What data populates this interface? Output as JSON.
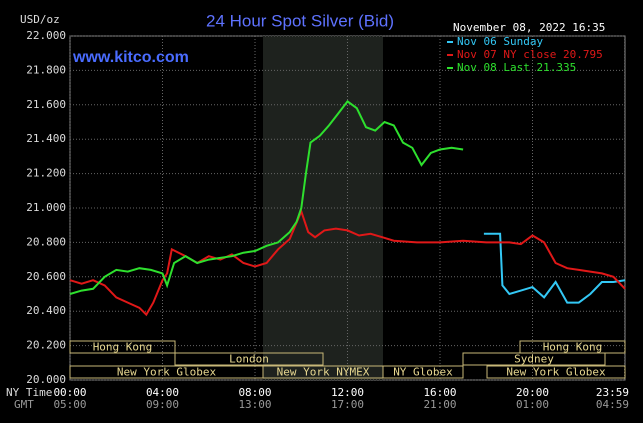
{
  "chart_data": {
    "type": "line",
    "title": "24 Hour Spot Silver (Bid)",
    "timestamp": "November 08, 2022 16:35",
    "watermark": "www.kitco.com",
    "y_unit": "USD/oz",
    "x_row_labels": [
      "NY Time",
      "GMT"
    ],
    "xlim": [
      0,
      24
    ],
    "xticks": [
      {
        "value": 0,
        "label": "00:00"
      },
      {
        "value": 4,
        "label": "04:00"
      },
      {
        "value": 8,
        "label": "08:00"
      },
      {
        "value": 12,
        "label": "12:00"
      },
      {
        "value": 16,
        "label": "16:00"
      },
      {
        "value": 20,
        "label": "20:00"
      },
      {
        "value": 23.983,
        "label": "23:59"
      }
    ],
    "gmt_labels": [
      "05:00",
      "09:00",
      "13:00",
      "17:00",
      "21:00",
      "01:00",
      "04:59"
    ],
    "ylim": [
      20,
      22
    ],
    "yticks": [
      {
        "value": 20,
        "label": "20.000"
      },
      {
        "value": 20.2,
        "label": "20.200"
      },
      {
        "value": 20.4,
        "label": "20.400"
      },
      {
        "value": 20.6,
        "label": "20.600"
      },
      {
        "value": 20.8,
        "label": "20.800"
      },
      {
        "value": 21,
        "label": "21.000"
      },
      {
        "value": 21.2,
        "label": "21.200"
      },
      {
        "value": 21.4,
        "label": "21.400"
      },
      {
        "value": 21.6,
        "label": "21.600"
      },
      {
        "value": 21.8,
        "label": "21.800"
      },
      {
        "value": 22,
        "label": "22.000"
      }
    ],
    "grid": true,
    "sessions": [
      "Hong Kong",
      "London",
      "New York Globex",
      "New York NYMEX",
      "NY Globex",
      "Sydney",
      "Hong Kong",
      "New York Globex"
    ],
    "series": [
      {
        "name": "Nov 06 Sunday",
        "color": "#33c8f5",
        "x": [
          17.9,
          18.6,
          18.7,
          19,
          19.5,
          20,
          20.5,
          21,
          21.5,
          22,
          22.5,
          23,
          23.5,
          24
        ],
        "values": [
          20.85,
          20.85,
          20.55,
          20.5,
          20.52,
          20.54,
          20.48,
          20.57,
          20.45,
          20.45,
          20.5,
          20.57,
          20.57,
          20.58
        ]
      },
      {
        "name": "Nov 07 NY close 20.795",
        "color": "#e01818",
        "x": [
          0,
          0.5,
          1,
          1.5,
          2,
          2.5,
          3,
          3.3,
          3.6,
          4,
          4.2,
          4.4,
          5,
          5.5,
          6,
          6.5,
          7,
          7.5,
          8,
          8.5,
          9,
          9.5,
          10,
          10.3,
          10.6,
          11,
          11.5,
          12,
          12.5,
          13,
          13.5,
          14,
          15,
          16,
          17,
          18,
          19,
          19.5,
          20,
          20.5,
          21,
          21.5,
          22,
          22.5,
          23,
          23.5,
          24
        ],
        "values": [
          20.58,
          20.56,
          20.58,
          20.55,
          20.48,
          20.45,
          20.42,
          20.38,
          20.45,
          20.58,
          20.62,
          20.76,
          20.72,
          20.68,
          20.72,
          20.7,
          20.73,
          20.68,
          20.66,
          20.68,
          20.76,
          20.82,
          20.98,
          20.86,
          20.83,
          20.87,
          20.88,
          20.87,
          20.84,
          20.85,
          20.83,
          20.81,
          20.8,
          20.8,
          20.81,
          20.8,
          20.8,
          20.79,
          20.84,
          20.8,
          20.68,
          20.65,
          20.64,
          20.63,
          20.62,
          20.6,
          20.53
        ]
      },
      {
        "name": "Nov 08 Last 21.335",
        "color": "#2ee02e",
        "x": [
          0,
          0.5,
          1,
          1.5,
          2,
          2.5,
          3,
          3.5,
          4,
          4.2,
          4.5,
          5,
          5.5,
          6,
          6.5,
          7,
          7.5,
          8,
          8.5,
          9,
          9.5,
          9.8,
          10,
          10.2,
          10.4,
          10.8,
          11.2,
          11.6,
          12,
          12.4,
          12.8,
          13.2,
          13.6,
          14,
          14.4,
          14.8,
          15.2,
          15.6,
          16,
          16.5,
          17
        ],
        "values": [
          20.5,
          20.52,
          20.53,
          20.6,
          20.64,
          20.63,
          20.65,
          20.64,
          20.62,
          20.55,
          20.68,
          20.72,
          20.68,
          20.7,
          20.71,
          20.72,
          20.74,
          20.75,
          20.78,
          20.8,
          20.86,
          20.92,
          21.0,
          21.2,
          21.38,
          21.42,
          21.48,
          21.55,
          21.62,
          21.58,
          21.47,
          21.45,
          21.5,
          21.48,
          21.38,
          21.35,
          21.25,
          21.32,
          21.34,
          21.35,
          21.34
        ]
      }
    ]
  }
}
